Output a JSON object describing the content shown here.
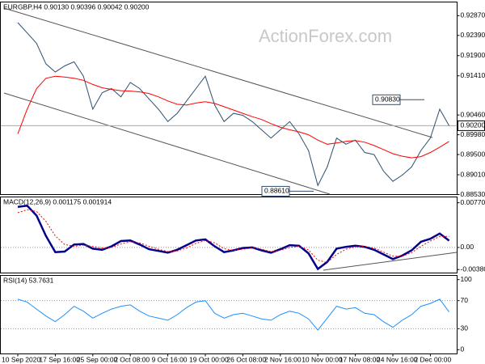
{
  "chart_data": [
    {
      "type": "line",
      "title": "EURGBP,H4 0.90130 0.90396 0.90042 0.90200",
      "watermark": "ActionForex.com",
      "categories": [
        "10 Sep 2020",
        null,
        null,
        null,
        "17 Sep 16:00",
        null,
        null,
        null,
        "25 Sep 00:00",
        null,
        null,
        null,
        "2 Oct 08:00",
        null,
        null,
        null,
        "9 Oct 16:00",
        null,
        null,
        null,
        "19 Oct 00:00",
        null,
        null,
        null,
        "26 Oct 08:00",
        null,
        null,
        null,
        "2 Nov 16:00",
        null,
        null,
        null,
        "10 Nov 00:00",
        null,
        null,
        null,
        "17 Nov 08:00",
        null,
        null,
        null,
        "24 Nov 16:00",
        null,
        null,
        null,
        "2 Dec 00:00",
        null,
        null
      ],
      "series": [
        {
          "color": "#2f4f6f",
          "values": [
            0.927,
            0.9245,
            0.922,
            0.917,
            0.915,
            0.9165,
            0.9175,
            0.914,
            0.906,
            0.91,
            0.911,
            0.909,
            0.9125,
            0.911,
            0.9085,
            0.906,
            0.903,
            0.905,
            0.908,
            0.911,
            0.914,
            0.907,
            0.903,
            0.905,
            0.9045,
            0.903,
            0.901,
            0.899,
            0.901,
            0.903,
            0.9,
            0.896,
            0.8875,
            0.892,
            0.899,
            0.8975,
            0.8985,
            0.8955,
            0.895,
            0.891,
            0.8885,
            0.89,
            0.892,
            0.896,
            0.899,
            0.906,
            0.902
          ]
        },
        {
          "color": "#ff0000",
          "values": [
            0.9,
            0.906,
            0.911,
            0.9135,
            0.914,
            0.9138,
            0.9135,
            0.913,
            0.912,
            0.9112,
            0.9108,
            0.9105,
            0.9104,
            0.9102,
            0.9098,
            0.909,
            0.908,
            0.9072,
            0.907,
            0.9075,
            0.9078,
            0.9074,
            0.9066,
            0.9058,
            0.905,
            0.9042,
            0.9035,
            0.9025,
            0.9016,
            0.901,
            0.9005,
            0.8998,
            0.8985,
            0.8975,
            0.8978,
            0.8982,
            0.8984,
            0.898,
            0.8972,
            0.8962,
            0.8952,
            0.8946,
            0.8942,
            0.8945,
            0.8955,
            0.8968,
            0.8982
          ]
        }
      ],
      "ylim": [
        0.8853,
        0.932
      ],
      "yticks": [
        {
          "value": 0.9287,
          "label": "0.92870"
        },
        {
          "value": 0.9239,
          "label": "0.92390"
        },
        {
          "value": 0.919,
          "label": "0.91900"
        },
        {
          "value": 0.9141,
          "label": "0.91410"
        },
        {
          "value": 0.9046,
          "label": "0.90460"
        },
        {
          "value": 0.8998,
          "label": "0.89980"
        },
        {
          "value": 0.895,
          "label": "0.89500"
        },
        {
          "value": 0.8901,
          "label": "0.89010"
        },
        {
          "value": 0.8853,
          "label": "0.88530"
        }
      ],
      "last": {
        "value": 0.902,
        "label": "0.90200"
      },
      "annotations": [
        {
          "value": 0.9083,
          "label": "0.90830"
        },
        {
          "value": 0.8861,
          "label": "0.88610"
        }
      ]
    },
    {
      "type": "line",
      "title": "MACD(12,26,9) 0.001175 0.001914",
      "series": [
        {
          "color": "#00008b",
          "values": [
            0.007,
            0.0072,
            0.0055,
            0.002,
            -0.0008,
            -0.0007,
            0.0005,
            0.0006,
            -0.0002,
            -0.0004,
            0.0002,
            0.0011,
            0.0012,
            0.0005,
            -0.0003,
            -0.0006,
            -0.0009,
            -0.0004,
            0.0004,
            0.0012,
            0.0014,
            0.0002,
            -0.0008,
            -0.0005,
            -0.0001,
            0.0,
            -0.0005,
            -0.0009,
            -0.0003,
            0.0004,
            0.0003,
            -0.001,
            -0.0037,
            -0.0025,
            -0.0002,
            0.0001,
            0.0003,
            0.0001,
            -0.0004,
            -0.0012,
            -0.002,
            -0.0014,
            -0.0005,
            0.001,
            0.0015,
            0.0024,
            0.001175
          ]
        },
        {
          "color": "#ff0000",
          "style": "dotted",
          "values": [
            0.006,
            0.0065,
            0.0062,
            0.0045,
            0.002,
            0.0005,
            0.0002,
            0.0004,
            0.0002,
            -0.0001,
            0.0,
            0.0006,
            0.001,
            0.0008,
            0.0002,
            -0.0003,
            -0.0007,
            -0.0006,
            -0.0001,
            0.0007,
            0.0012,
            0.0008,
            -0.0002,
            -0.0005,
            -0.0003,
            -0.0001,
            -0.0003,
            -0.0007,
            -0.0005,
            0.0,
            0.0002,
            -0.0004,
            -0.0022,
            -0.0026,
            -0.0012,
            -0.0003,
            0.0001,
            0.0002,
            -0.0001,
            -0.0008,
            -0.0015,
            -0.0015,
            -0.0009,
            0.0002,
            0.0011,
            0.0019,
            0.001914
          ]
        }
      ],
      "ylim": [
        -0.0044,
        0.0087
      ],
      "yticks": [
        0.007704,
        {
          "value": 0,
          "label": "0.00"
        },
        -0.003804
      ],
      "levels": [
        0
      ]
    },
    {
      "type": "line",
      "title": "RSI(14) 53.7631",
      "series": [
        {
          "color": "#1e90ff",
          "values": [
            72,
            68,
            58,
            48,
            40,
            50,
            62,
            55,
            45,
            52,
            58,
            62,
            64,
            55,
            48,
            45,
            42,
            50,
            60,
            68,
            70,
            52,
            45,
            50,
            52,
            48,
            44,
            42,
            50,
            55,
            52,
            44,
            28,
            45,
            62,
            58,
            60,
            52,
            50,
            40,
            32,
            42,
            50,
            62,
            66,
            72,
            53.7631
          ]
        }
      ],
      "ylim": [
        -6,
        106
      ],
      "yticks": [
        100,
        70,
        30,
        0
      ],
      "levels": [
        70,
        30
      ]
    }
  ]
}
